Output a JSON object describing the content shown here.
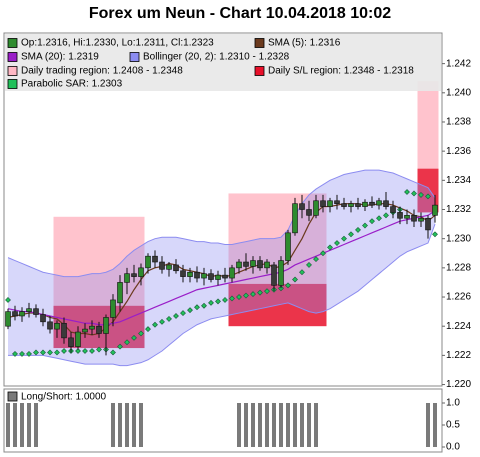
{
  "chart_data": [
    {
      "type": "candlestick",
      "title": "Forex um Neun - Chart 10.04.2018 10:02",
      "ylim": [
        1.2199,
        1.2441
      ],
      "yticks": [
        {
          "value": 1.22,
          "label": "1.220"
        },
        1.222,
        1.224,
        1.226,
        1.228,
        {
          "value": 1.23,
          "label": "1.230"
        },
        1.232,
        1.234,
        1.236,
        1.238,
        {
          "value": 1.24,
          "label": "1.240"
        },
        1.242
      ],
      "series": [
        {
          "type": "candlestick",
          "name": "Op:1.2316, Hi:1.2330, Lo:1.2311, Cl:1.2323",
          "color": "#2e8b2e",
          "down_color": "#3a3a3a",
          "open": [
            1.224,
            1.225,
            1.2247,
            1.225,
            1.2252,
            1.2248,
            1.2243,
            1.2238,
            1.2242,
            1.2232,
            1.2226,
            1.2236,
            1.2238,
            1.224,
            1.2235,
            1.2246,
            1.2256,
            1.227,
            1.2276,
            1.2274,
            1.228,
            1.2288,
            1.2284,
            1.2279,
            1.2282,
            1.2278,
            1.2274,
            1.2277,
            1.2273,
            1.2276,
            1.2272,
            1.2275,
            1.2273,
            1.228,
            1.2284,
            1.2281,
            1.2285,
            1.228,
            1.2282,
            1.2268,
            1.2285,
            1.2304,
            1.2324,
            1.232,
            1.2316,
            1.2326,
            1.2322,
            1.2326,
            1.2324,
            1.2322,
            1.2324,
            1.2322,
            1.2325,
            1.2323,
            1.2326,
            1.2322,
            1.2318,
            1.2314,
            1.2316,
            1.2312,
            1.2314,
            1.2316
          ],
          "high": [
            1.2252,
            1.2254,
            1.2253,
            1.2256,
            1.2255,
            1.2252,
            1.2247,
            1.2244,
            1.2246,
            1.2236,
            1.224,
            1.2242,
            1.2244,
            1.2243,
            1.2248,
            1.2262,
            1.2275,
            1.228,
            1.2282,
            1.2283,
            1.229,
            1.2292,
            1.2288,
            1.2284,
            1.2286,
            1.2282,
            1.228,
            1.2281,
            1.228,
            1.2279,
            1.2278,
            1.228,
            1.2282,
            1.2286,
            1.229,
            1.2288,
            1.2288,
            1.2286,
            1.2284,
            1.2288,
            1.2306,
            1.2328,
            1.233,
            1.2326,
            1.233,
            1.233,
            1.2328,
            1.233,
            1.2328,
            1.2326,
            1.2328,
            1.2327,
            1.2329,
            1.2328,
            1.2332,
            1.2326,
            1.2322,
            1.232,
            1.232,
            1.2318,
            1.2316,
            1.233
          ],
          "low": [
            1.2238,
            1.2244,
            1.2243,
            1.2246,
            1.2246,
            1.224,
            1.2235,
            1.2232,
            1.2228,
            1.2222,
            1.2224,
            1.2232,
            1.2234,
            1.2232,
            1.222,
            1.224,
            1.225,
            1.2262,
            1.227,
            1.2268,
            1.2276,
            1.228,
            1.2276,
            1.2274,
            1.2276,
            1.227,
            1.227,
            1.227,
            1.2268,
            1.227,
            1.2268,
            1.227,
            1.227,
            1.2276,
            1.2278,
            1.2276,
            1.2278,
            1.2276,
            1.2264,
            1.2266,
            1.2282,
            1.2302,
            1.2314,
            1.2312,
            1.2314,
            1.2318,
            1.2318,
            1.232,
            1.232,
            1.2318,
            1.232,
            1.2319,
            1.2321,
            1.232,
            1.232,
            1.2314,
            1.231,
            1.231,
            1.2308,
            1.2308,
            1.23,
            1.2311
          ],
          "close": [
            1.225,
            1.2247,
            1.225,
            1.2252,
            1.2248,
            1.2243,
            1.2238,
            1.2242,
            1.2232,
            1.2226,
            1.2236,
            1.2238,
            1.224,
            1.2235,
            1.2246,
            1.2258,
            1.227,
            1.2276,
            1.2274,
            1.228,
            1.2288,
            1.2284,
            1.2279,
            1.2282,
            1.2278,
            1.2274,
            1.2277,
            1.2273,
            1.2276,
            1.2272,
            1.2275,
            1.2273,
            1.228,
            1.2284,
            1.2281,
            1.2285,
            1.228,
            1.2284,
            1.2268,
            1.2285,
            1.2304,
            1.2324,
            1.232,
            1.2316,
            1.2326,
            1.2322,
            1.2326,
            1.2324,
            1.2322,
            1.2324,
            1.2322,
            1.2325,
            1.2323,
            1.2326,
            1.2322,
            1.2318,
            1.2314,
            1.2316,
            1.2312,
            1.2314,
            1.2306,
            1.2323
          ]
        },
        {
          "type": "line",
          "name": "SMA (5): 1.2316",
          "color": "#6b3a1e",
          "values": [
            1.2246,
            1.2247,
            1.2248,
            1.2249,
            1.2249,
            1.2248,
            1.2246,
            1.2245,
            1.2241,
            1.2236,
            1.2235,
            1.2235,
            1.2234,
            1.2235,
            1.2239,
            1.2243,
            1.225,
            1.2257,
            1.2265,
            1.2272,
            1.2278,
            1.228,
            1.2281,
            1.2283,
            1.2282,
            1.2279,
            1.2278,
            1.2277,
            1.2276,
            1.2274,
            1.2275,
            1.2274,
            1.2275,
            1.2277,
            1.2279,
            1.2281,
            1.2282,
            1.2283,
            1.228,
            1.2281,
            1.2284,
            1.2292,
            1.23,
            1.231,
            1.2318,
            1.2322,
            1.2322,
            1.2323,
            1.2324,
            1.2324,
            1.2324,
            1.2323,
            1.2323,
            1.2324,
            1.2324,
            1.2323,
            1.2321,
            1.2319,
            1.2316,
            1.2315,
            1.2312,
            1.2316
          ]
        },
        {
          "type": "line",
          "name": "SMA (20): 1.2319",
          "color": "#9a1ec8",
          "values": [
            1.2252,
            1.2251,
            1.225,
            1.225,
            1.2249,
            1.2248,
            1.2247,
            1.2246,
            1.2245,
            1.2244,
            1.2243,
            1.2242,
            1.2242,
            1.2241,
            1.2241,
            1.2242,
            1.2243,
            1.2245,
            1.2247,
            1.2249,
            1.2251,
            1.2253,
            1.2255,
            1.2257,
            1.2259,
            1.2261,
            1.2263,
            1.2265,
            1.2266,
            1.2267,
            1.2268,
            1.2269,
            1.227,
            1.2271,
            1.2272,
            1.2273,
            1.2274,
            1.2275,
            1.2276,
            1.2277,
            1.2279,
            1.2282,
            1.2284,
            1.2286,
            1.2288,
            1.229,
            1.2292,
            1.2294,
            1.2296,
            1.2298,
            1.23,
            1.2302,
            1.2304,
            1.2306,
            1.2308,
            1.231,
            1.2312,
            1.2313,
            1.2314,
            1.2315,
            1.2316,
            1.2319
          ]
        },
        {
          "type": "band",
          "name": "Bollinger (20, 2): 1.2310 - 1.2328",
          "color": "#8c8cf0",
          "upper": [
            1.2287,
            1.2285,
            1.2283,
            1.2281,
            1.2279,
            1.2277,
            1.2276,
            1.2275,
            1.2274,
            1.2274,
            1.2274,
            1.2275,
            1.2276,
            1.2276,
            1.2277,
            1.2279,
            1.2283,
            1.2288,
            1.2292,
            1.2295,
            1.2298,
            1.23,
            1.2301,
            1.2301,
            1.2301,
            1.23,
            1.2299,
            1.2298,
            1.2298,
            1.2297,
            1.2297,
            1.2296,
            1.2296,
            1.2297,
            1.2298,
            1.2299,
            1.23,
            1.23,
            1.23,
            1.2301,
            1.2306,
            1.2316,
            1.2324,
            1.233,
            1.2334,
            1.2337,
            1.234,
            1.2342,
            1.2344,
            1.2345,
            1.2346,
            1.2347,
            1.2347,
            1.2347,
            1.2346,
            1.2345,
            1.2343,
            1.2341,
            1.2339,
            1.2337,
            1.2335,
            1.2328
          ],
          "lower": [
            1.222,
            1.222,
            1.222,
            1.222,
            1.222,
            1.222,
            1.2219,
            1.2218,
            1.2217,
            1.2216,
            1.2215,
            1.2214,
            1.2214,
            1.2214,
            1.2214,
            1.2214,
            1.2213,
            1.2213,
            1.2214,
            1.2215,
            1.2217,
            1.222,
            1.2223,
            1.2227,
            1.2231,
            1.2235,
            1.2238,
            1.2241,
            1.2243,
            1.2245,
            1.2246,
            1.2247,
            1.2248,
            1.2249,
            1.225,
            1.2251,
            1.2252,
            1.2253,
            1.2254,
            1.2255,
            1.2256,
            1.2254,
            1.2252,
            1.225,
            1.2249,
            1.225,
            1.2252,
            1.2255,
            1.2258,
            1.2261,
            1.2264,
            1.2268,
            1.2272,
            1.2276,
            1.228,
            1.2284,
            1.2288,
            1.2291,
            1.2293,
            1.2295,
            1.2297,
            1.231
          ]
        },
        {
          "type": "region",
          "name": "Daily trading region: 1.2408 - 1.2348",
          "color": "#ffb8c4",
          "blocks": [
            {
              "start": 7,
              "end": 19,
              "high": 1.2315,
              "low": 1.2254
            },
            {
              "start": 32,
              "end": 45,
              "high": 1.2331,
              "low": 1.2269
            },
            {
              "start": 59,
              "end": 61,
              "high": 1.2408,
              "low": 1.2348
            }
          ]
        },
        {
          "type": "region",
          "name": "Daily S/L region: 1.2348 - 1.2318",
          "color": "#e8102a",
          "blocks": [
            {
              "start": 7,
              "end": 19,
              "high": 1.2254,
              "low": 1.2225
            },
            {
              "start": 32,
              "end": 45,
              "high": 1.2269,
              "low": 1.224
            },
            {
              "start": 59,
              "end": 61,
              "high": 1.2348,
              "low": 1.2318
            }
          ]
        },
        {
          "type": "dots",
          "name": "Parabolic SAR: 1.2303",
          "color": "#22c05a",
          "values": [
            1.2258,
            1.2221,
            1.2221,
            1.2221,
            1.2222,
            1.2222,
            1.2222,
            1.2222,
            1.2223,
            1.2223,
            1.2223,
            1.2223,
            1.2223,
            1.2224,
            1.2224,
            1.2222,
            1.2226,
            1.2229,
            1.2232,
            1.2235,
            1.2238,
            1.2241,
            1.2243,
            1.2245,
            1.2247,
            1.2249,
            1.2251,
            1.2253,
            1.2254,
            1.2256,
            1.2257,
            1.2258,
            1.2259,
            1.226,
            1.2261,
            1.2262,
            1.2263,
            1.2264,
            1.2265,
            1.2266,
            1.2268,
            1.2272,
            1.2277,
            1.2282,
            1.2286,
            1.229,
            1.2294,
            1.2297,
            1.23,
            1.2303,
            1.2306,
            1.2309,
            1.2312,
            1.2314,
            1.2316,
            1.2318,
            1.232,
            1.2332,
            1.2331,
            1.233,
            1.2329,
            1.2303
          ]
        }
      ]
    },
    {
      "type": "bar",
      "ylim": [
        0,
        1
      ],
      "yticks": [
        {
          "value": 0,
          "label": "0.0"
        },
        0.5,
        {
          "value": 1,
          "label": "1.0"
        }
      ],
      "series": [
        {
          "name": "Long/Short: 1.0000",
          "color": "#7a7a7a",
          "values": [
            1,
            1,
            1,
            1,
            1,
            0,
            0,
            0,
            0,
            0,
            0,
            0,
            0,
            0,
            0,
            1,
            1,
            1,
            1,
            1,
            0,
            0,
            0,
            0,
            0,
            0,
            0,
            0,
            0,
            0,
            0,
            0,
            0,
            1,
            1,
            1,
            1,
            1,
            1,
            1,
            1,
            1,
            1,
            1,
            1,
            0,
            0,
            0,
            0,
            0,
            0,
            0,
            0,
            0,
            0,
            0,
            0,
            0,
            0,
            0,
            1,
            1
          ]
        }
      ]
    }
  ]
}
